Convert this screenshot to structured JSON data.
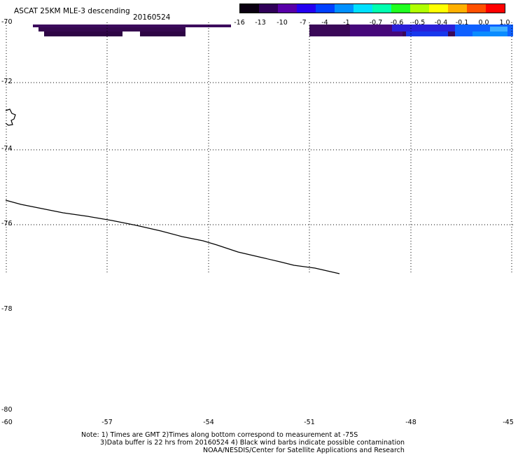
{
  "header": {
    "title": "ASCAT 25KM MLE-3 descending",
    "date": "20160524"
  },
  "colorbar": {
    "labels": [
      "-16",
      "-13",
      "-10",
      "-7",
      "-4",
      "-1",
      "-0.7",
      "-0.6",
      "-0.5",
      "-0.4",
      "-0.1",
      "0.0",
      "1.0"
    ],
    "colors": [
      "#0a0010",
      "#300058",
      "#5800a8",
      "#2400f0",
      "#0040ff",
      "#0090ff",
      "#00e0ff",
      "#00ffb0",
      "#20ff20",
      "#b0ff00",
      "#ffff00",
      "#ffb000",
      "#ff5000",
      "#ff0000"
    ]
  },
  "map": {
    "lat_labels": [
      "-70",
      "-72",
      "-74",
      "-76",
      "-78",
      "-80"
    ],
    "lon_labels": [
      "-60",
      "-57",
      "-54",
      "-51",
      "-48",
      "-45"
    ]
  },
  "notes": {
    "line1": "Note: 1) Times are GMT 2)Times along bottom correspond to measurement at -75S",
    "line2": "3)Data buffer is 22 hrs from 20160524 4) Black wind barbs indicate possible contamination",
    "line3": "NOAA/NESDIS/Center for Satellite Applications and Research"
  }
}
